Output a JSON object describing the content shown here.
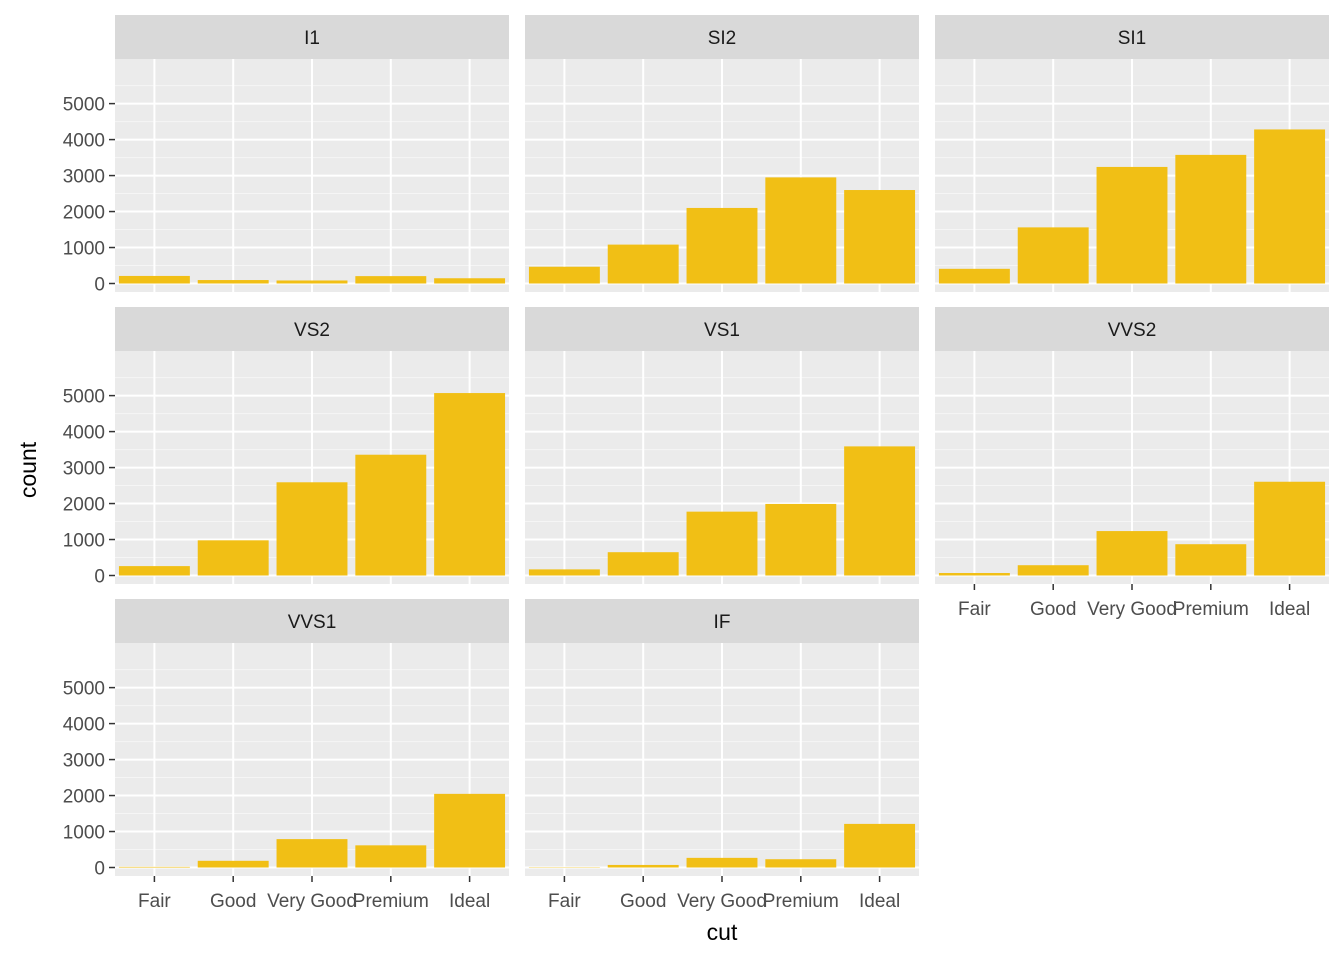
{
  "chart_data": {
    "type": "bar",
    "facet_by": "clarity",
    "categories": [
      "Fair",
      "Good",
      "Very Good",
      "Premium",
      "Ideal"
    ],
    "xlabel": "cut",
    "ylabel": "count",
    "ylim": [
      0,
      5000
    ],
    "yticks": [
      0,
      1000,
      2000,
      3000,
      4000,
      5000
    ],
    "grid": true,
    "bar_color": "#F1BF15",
    "panel_background": "#EBEBEB",
    "strip_background": "#D9D9D9",
    "facets": [
      {
        "name": "I1",
        "values": [
          210,
          96,
          84,
          205,
          146
        ]
      },
      {
        "name": "SI2",
        "values": [
          466,
          1081,
          2100,
          2949,
          2598
        ]
      },
      {
        "name": "SI1",
        "values": [
          408,
          1560,
          3240,
          3575,
          4282
        ]
      },
      {
        "name": "VS2",
        "values": [
          261,
          978,
          2591,
          3357,
          5071
        ]
      },
      {
        "name": "VS1",
        "values": [
          170,
          648,
          1775,
          1989,
          3589
        ]
      },
      {
        "name": "VVS2",
        "values": [
          69,
          286,
          1235,
          870,
          2606
        ]
      },
      {
        "name": "VVS1",
        "values": [
          17,
          186,
          789,
          616,
          2047
        ]
      },
      {
        "name": "IF",
        "values": [
          9,
          71,
          268,
          230,
          1212
        ]
      }
    ]
  }
}
